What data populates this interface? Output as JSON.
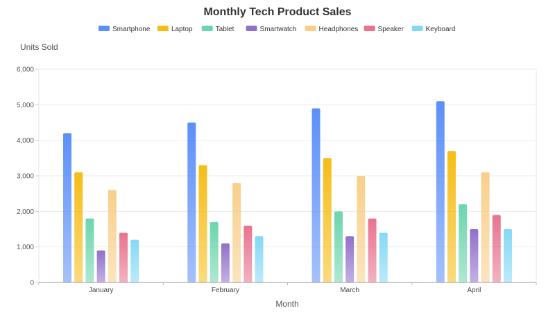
{
  "chart_data": {
    "type": "bar",
    "title": "Monthly Tech Product Sales",
    "xlabel": "Month",
    "ylabel": "Units Sold",
    "categories": [
      "January",
      "February",
      "March",
      "April"
    ],
    "ylim": [
      0,
      6000
    ],
    "yticks": [
      0,
      1000,
      2000,
      3000,
      4000,
      5000,
      6000
    ],
    "ytick_labels": [
      "0",
      "1,000",
      "2,000",
      "3,000",
      "4,000",
      "5,000",
      "6,000"
    ],
    "grid": true,
    "legend_position": "top",
    "series": [
      {
        "name": "Smartphone",
        "color": "#5b8ff9",
        "values": [
          4200,
          4500,
          4900,
          5100
        ]
      },
      {
        "name": "Laptop",
        "color": "#f6bd16",
        "values": [
          3100,
          3300,
          3500,
          3700
        ]
      },
      {
        "name": "Tablet",
        "color": "#6dd5ad",
        "values": [
          1800,
          1700,
          2000,
          2200
        ]
      },
      {
        "name": "Smartwatch",
        "color": "#9270ca",
        "values": [
          900,
          1100,
          1300,
          1500
        ]
      },
      {
        "name": "Headphones",
        "color": "#f8cf8a",
        "values": [
          2600,
          2800,
          3000,
          3100
        ]
      },
      {
        "name": "Speaker",
        "color": "#e8738f",
        "values": [
          1400,
          1600,
          1800,
          1900
        ]
      },
      {
        "name": "Keyboard",
        "color": "#85d8f5",
        "values": [
          1200,
          1300,
          1400,
          1500
        ]
      }
    ]
  }
}
